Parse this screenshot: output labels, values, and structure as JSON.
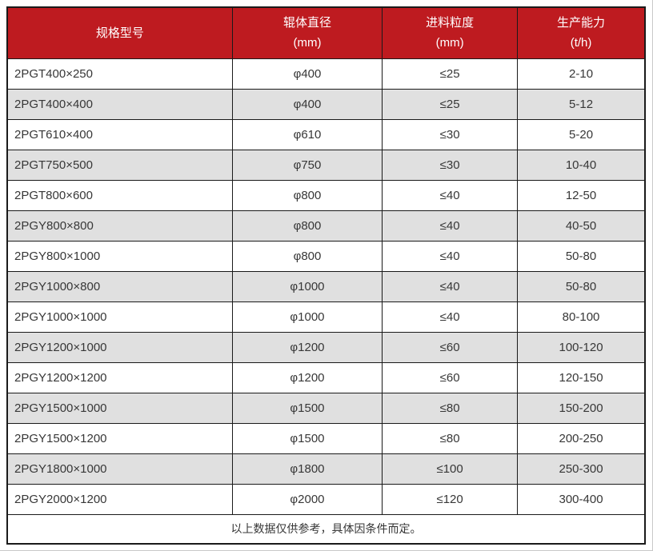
{
  "chart_data": {
    "type": "table",
    "columns": [
      {
        "key": "model",
        "label": "规格型号",
        "unit": ""
      },
      {
        "key": "diameter",
        "label": "辊体直径",
        "unit": "(mm)"
      },
      {
        "key": "feed",
        "label": "进料粒度",
        "unit": "(mm)"
      },
      {
        "key": "capacity",
        "label": "生产能力",
        "unit": "(t/h)"
      }
    ],
    "rows": [
      [
        "2PGT400×250",
        "φ400",
        "≤25",
        "2-10"
      ],
      [
        "2PGT400×400",
        "φ400",
        "≤25",
        "5-12"
      ],
      [
        "2PGT610×400",
        "φ610",
        "≤30",
        "5-20"
      ],
      [
        "2PGT750×500",
        "φ750",
        "≤30",
        "10-40"
      ],
      [
        "2PGT800×600",
        "φ800",
        "≤40",
        "12-50"
      ],
      [
        "2PGY800×800",
        "φ800",
        "≤40",
        "40-50"
      ],
      [
        "2PGY800×1000",
        "φ800",
        "≤40",
        "50-80"
      ],
      [
        "2PGY1000×800",
        "φ1000",
        "≤40",
        "50-80"
      ],
      [
        "2PGY1000×1000",
        "φ1000",
        "≤40",
        "80-100"
      ],
      [
        "2PGY1200×1000",
        "φ1200",
        "≤60",
        "100-120"
      ],
      [
        "2PGY1200×1200",
        "φ1200",
        "≤60",
        "120-150"
      ],
      [
        "2PGY1500×1000",
        "φ1500",
        "≤80",
        "150-200"
      ],
      [
        "2PGY1500×1200",
        "φ1500",
        "≤80",
        "200-250"
      ],
      [
        "2PGY1800×1000",
        "φ1800",
        "≤100",
        "250-300"
      ],
      [
        "2PGY2000×1200",
        "φ2000",
        "≤120",
        "300-400"
      ]
    ],
    "footnote": "以上数据仅供参考，具体因条件而定。"
  },
  "colors": {
    "header_bg": "#be1b20",
    "header_text": "#ffffff",
    "row_bg": "#ffffff",
    "row_alt_bg": "#e0e0e0",
    "border": "#1a1a1a",
    "body_text": "#373737"
  }
}
